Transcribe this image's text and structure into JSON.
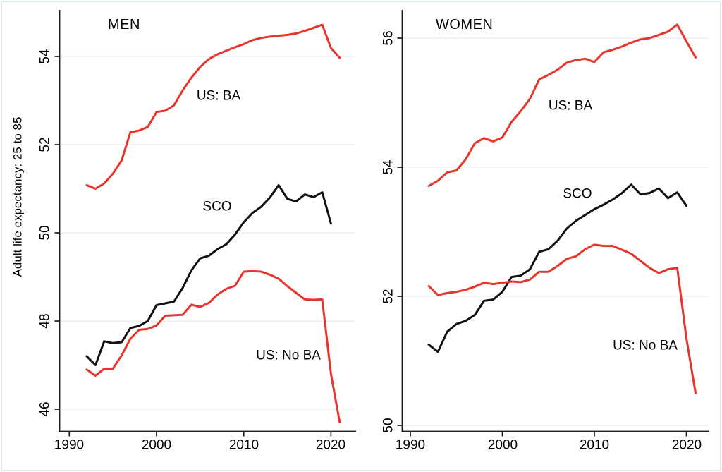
{
  "figure": {
    "background": "#ffffff",
    "border_color": "#dce7f0"
  },
  "axis_style": {
    "line_color": "#1a1a1a",
    "grid_color": "#e4edf4",
    "text_color": "#000000"
  },
  "chart_data": [
    {
      "type": "line",
      "title": "MEN",
      "ylabel": "Adult life expectancy: 25 to 85",
      "xlabel": "",
      "ylim": [
        45.5,
        55.1
      ],
      "xlim": [
        1989,
        2022.9
      ],
      "yticks": [
        54,
        52,
        50,
        48,
        46
      ],
      "xticks": [
        1990,
        2000,
        2010,
        2020
      ],
      "grid": true,
      "legend": "inline-labels",
      "series": [
        {
          "name": "US: BA",
          "color": "#e8342a",
          "start_year": 1992,
          "end_year": 2021,
          "values": [
            51.08,
            51.0,
            51.12,
            51.34,
            51.64,
            52.28,
            52.32,
            52.4,
            52.74,
            52.77,
            52.89,
            53.23,
            53.52,
            53.76,
            53.94,
            54.05,
            54.13,
            54.21,
            54.28,
            54.37,
            54.42,
            54.45,
            54.47,
            54.49,
            54.52,
            54.58,
            54.65,
            54.72,
            54.19,
            53.97
          ]
        },
        {
          "name": "SCO",
          "color": "#111111",
          "start_year": 1992,
          "end_year": 2020,
          "values": [
            47.2,
            47.0,
            47.54,
            47.5,
            47.52,
            47.84,
            47.89,
            48.0,
            48.36,
            48.4,
            48.44,
            48.75,
            49.15,
            49.42,
            49.48,
            49.63,
            49.74,
            49.96,
            50.24,
            50.45,
            50.59,
            50.8,
            51.08,
            50.77,
            50.71,
            50.87,
            50.81,
            50.92,
            50.21
          ]
        },
        {
          "name": "US: No BA",
          "color": "#e8342a",
          "start_year": 1992,
          "end_year": 2021,
          "values": [
            46.9,
            46.76,
            46.92,
            46.92,
            47.22,
            47.6,
            47.8,
            47.82,
            47.9,
            48.12,
            48.13,
            48.14,
            48.37,
            48.32,
            48.41,
            48.6,
            48.73,
            48.8,
            49.12,
            49.13,
            49.12,
            49.05,
            48.96,
            48.79,
            48.64,
            48.49,
            48.48,
            48.49,
            46.8,
            45.7
          ]
        }
      ]
    },
    {
      "type": "line",
      "title": "WOMEN",
      "ylabel": "",
      "xlabel": "",
      "ylim": [
        49.9,
        56.3
      ],
      "xlim": [
        1989,
        2022.9
      ],
      "yticks": [
        56,
        54,
        52,
        50
      ],
      "xticks": [
        1990,
        2000,
        2010,
        2020
      ],
      "grid": true,
      "legend": "inline-labels",
      "series": [
        {
          "name": "US: BA",
          "color": "#e8342a",
          "start_year": 1992,
          "end_year": 2021,
          "values": [
            53.71,
            53.79,
            53.92,
            53.95,
            54.12,
            54.37,
            54.45,
            54.4,
            54.46,
            54.7,
            54.87,
            55.06,
            55.36,
            55.43,
            55.51,
            55.62,
            55.66,
            55.68,
            55.63,
            55.78,
            55.82,
            55.87,
            55.93,
            55.98,
            56.0,
            56.05,
            56.1,
            56.21,
            55.95,
            55.7
          ]
        },
        {
          "name": "SCO",
          "color": "#111111",
          "start_year": 1992,
          "end_year": 2020,
          "values": [
            51.25,
            51.14,
            51.45,
            51.57,
            51.62,
            51.71,
            51.93,
            51.95,
            52.07,
            52.3,
            52.32,
            52.42,
            52.69,
            52.73,
            52.86,
            53.05,
            53.17,
            53.26,
            53.35,
            53.42,
            53.5,
            53.6,
            53.73,
            53.58,
            53.6,
            53.67,
            53.52,
            53.61,
            53.4
          ]
        },
        {
          "name": "US: No BA",
          "color": "#e8342a",
          "start_year": 1992,
          "end_year": 2021,
          "values": [
            52.16,
            52.02,
            52.05,
            52.07,
            52.1,
            52.15,
            52.21,
            52.19,
            52.21,
            52.23,
            52.22,
            52.26,
            52.38,
            52.38,
            52.47,
            52.58,
            52.62,
            52.73,
            52.8,
            52.78,
            52.78,
            52.72,
            52.66,
            52.55,
            52.44,
            52.36,
            52.42,
            52.44,
            51.35,
            50.5
          ]
        }
      ]
    }
  ]
}
